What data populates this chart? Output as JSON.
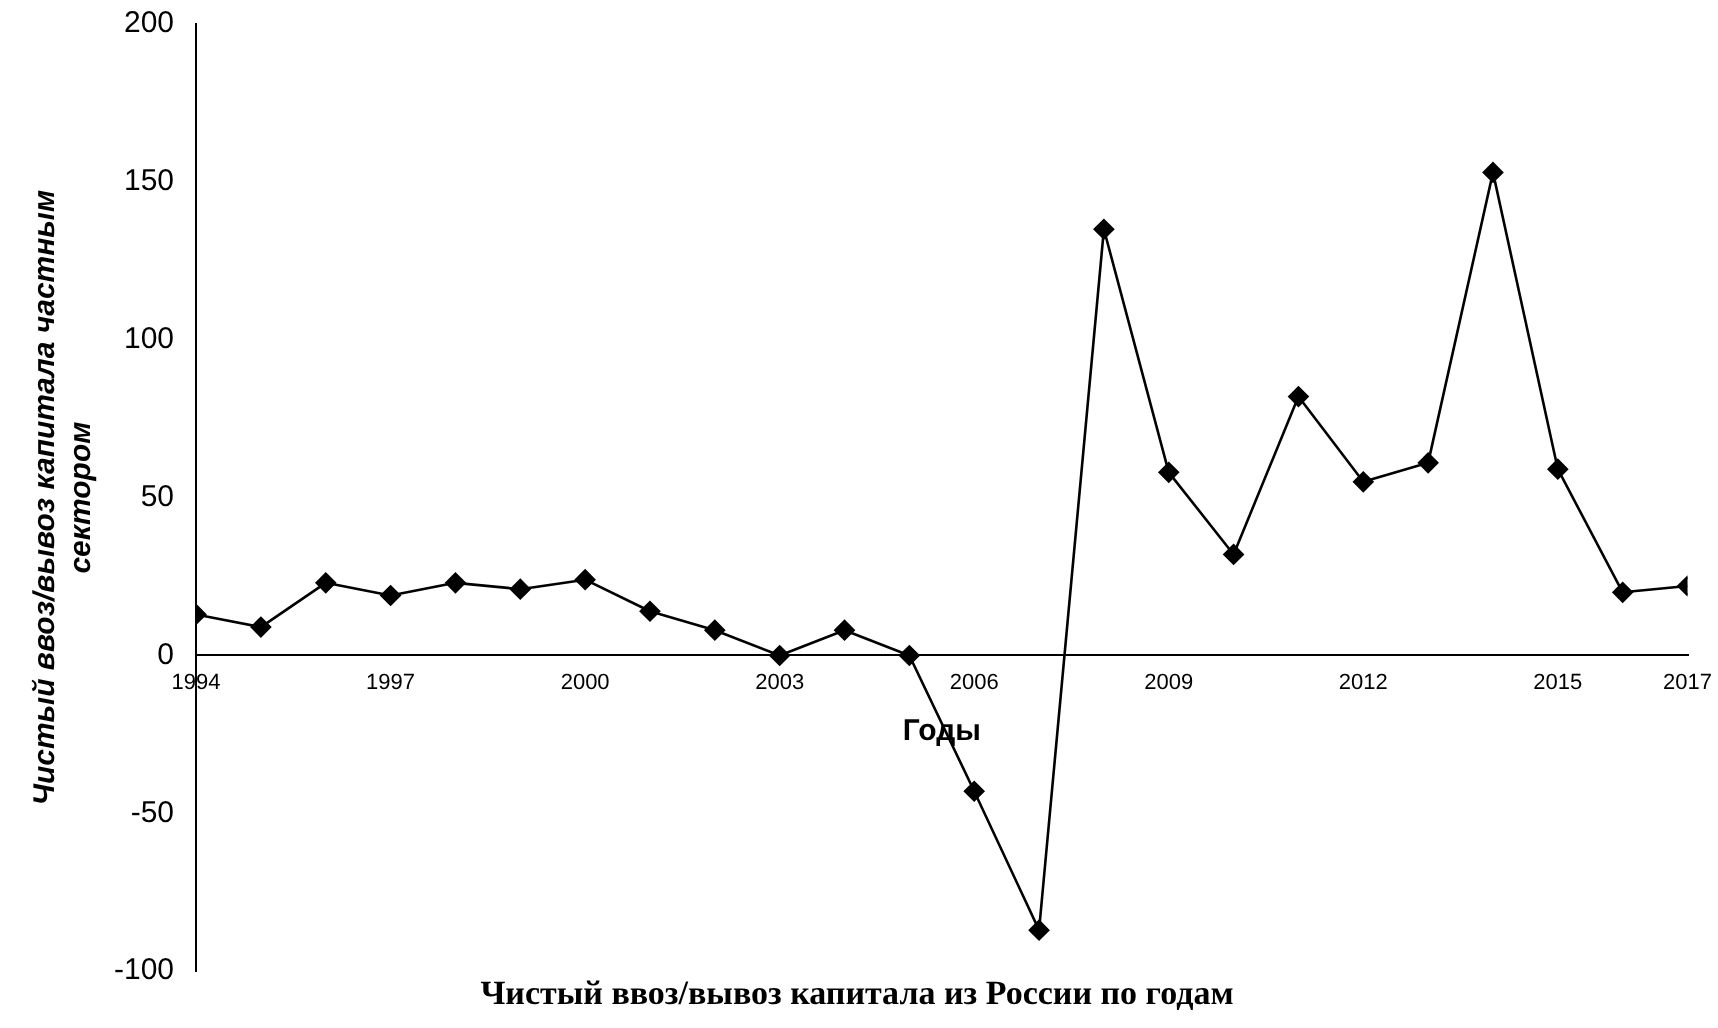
{
  "chart_data": {
    "type": "line",
    "title": "Чистый ввоз/вывоз капитала из России по годам",
    "xlabel": "Годы",
    "ylabel": "Чистый ввоз/вывоз капитала частным сектором",
    "x": [
      1994,
      1995,
      1996,
      1997,
      1998,
      1999,
      2000,
      2001,
      2002,
      2003,
      2004,
      2005,
      2006,
      2007,
      2008,
      2009,
      2010,
      2011,
      2012,
      2013,
      2014,
      2015,
      2016,
      2017
    ],
    "series": [
      {
        "color": "#000000",
        "values": [
          13,
          9,
          23,
          19,
          23,
          21,
          24,
          14,
          8,
          0,
          8,
          0,
          -43,
          -87,
          135,
          58,
          32,
          82,
          55,
          61,
          153,
          59,
          20,
          22
        ]
      }
    ],
    "xlim": [
      1994,
      2017
    ],
    "xticks": [
      1994,
      1997,
      2000,
      2003,
      2006,
      2009,
      2012,
      2015,
      2017
    ],
    "ylim": [
      -100,
      200
    ],
    "yticks": [
      -100,
      -50,
      0,
      50,
      100,
      150,
      200
    ],
    "grid": false,
    "legend": false,
    "marker": "diamond",
    "line_style": "solid"
  }
}
